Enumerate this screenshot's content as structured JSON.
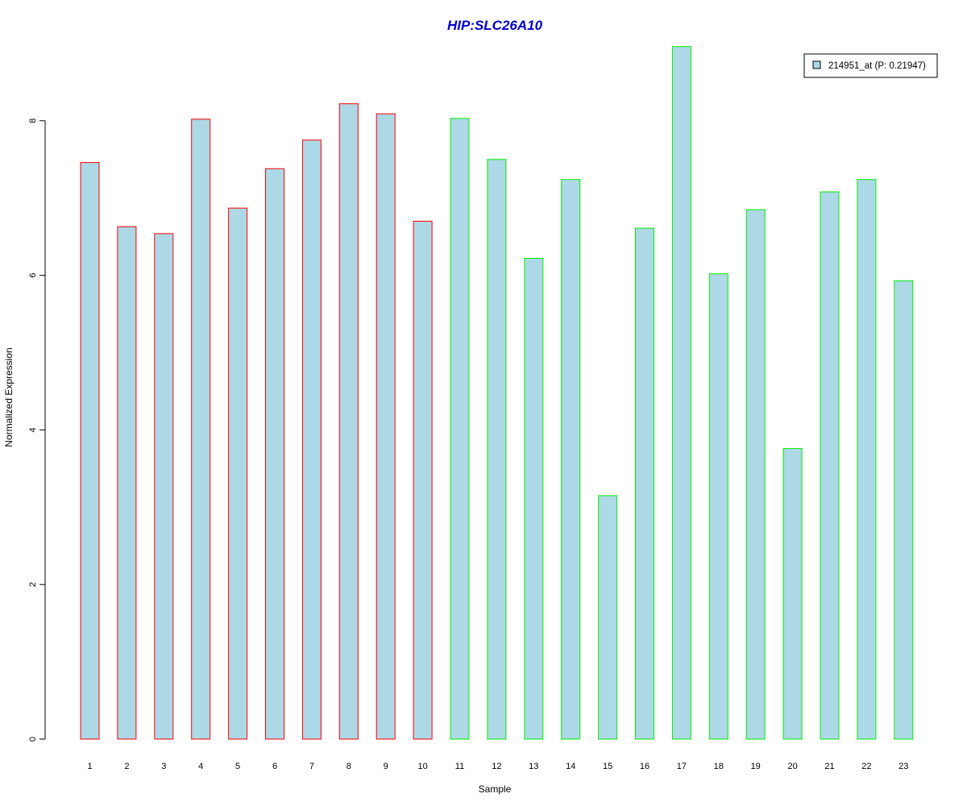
{
  "colors": {
    "title": "#0000cc",
    "bar_fill": "#add8e6",
    "group1_border": "#ff0000",
    "group2_border": "#00ee00",
    "axis": "#000000"
  },
  "chart_data": {
    "type": "bar",
    "title": "HIP:SLC26A10",
    "xlabel": "Sample",
    "ylabel": "Normalized Expression",
    "ylim": [
      0,
      9
    ],
    "yticks": [
      0,
      2,
      4,
      6,
      8
    ],
    "grid": false,
    "legend_position": "top-right",
    "categories": [
      "1",
      "2",
      "3",
      "4",
      "5",
      "6",
      "7",
      "8",
      "9",
      "10",
      "11",
      "12",
      "13",
      "14",
      "15",
      "16",
      "17",
      "18",
      "19",
      "20",
      "21",
      "22",
      "23"
    ],
    "series": [
      {
        "name": "214951_at (P: 0.21947)",
        "values": [
          7.46,
          6.63,
          6.54,
          8.02,
          6.87,
          7.38,
          7.75,
          8.22,
          8.09,
          6.7,
          8.03,
          7.5,
          6.22,
          7.24,
          3.15,
          6.61,
          8.96,
          6.02,
          6.85,
          3.76,
          7.08,
          7.24,
          5.93
        ],
        "groups": [
          1,
          1,
          1,
          1,
          1,
          1,
          1,
          1,
          1,
          1,
          2,
          2,
          2,
          2,
          2,
          2,
          2,
          2,
          2,
          2,
          2,
          2,
          2
        ]
      }
    ]
  }
}
